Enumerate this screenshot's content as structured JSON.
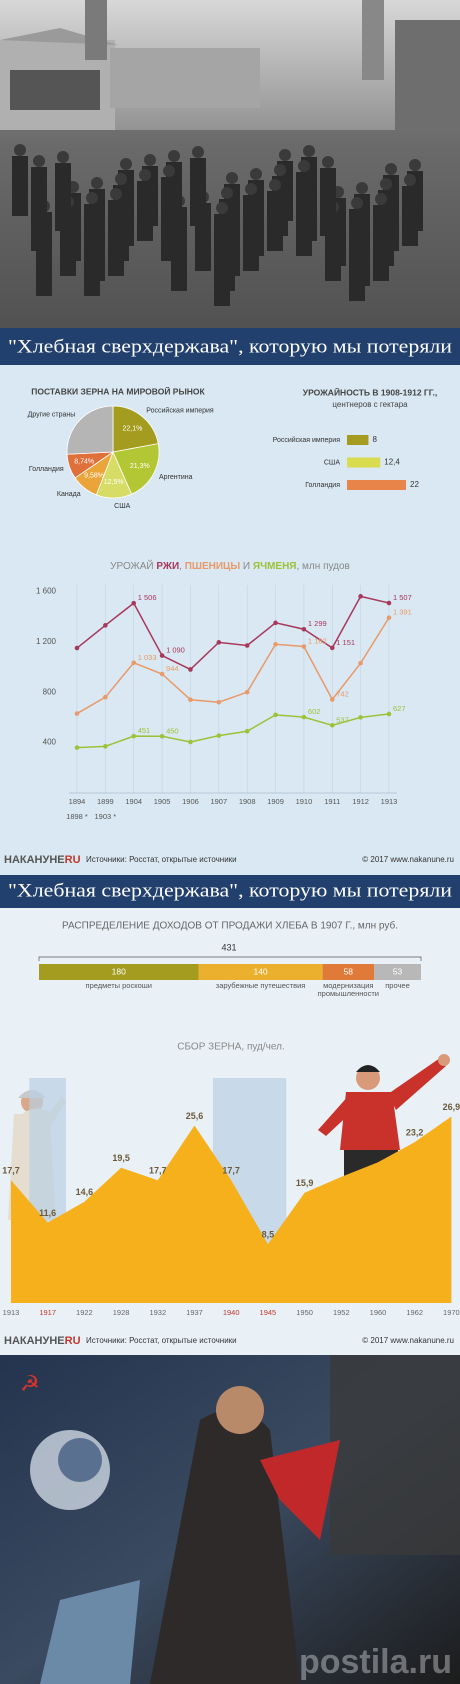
{
  "banner": {
    "title": "\"Хлебная сверхдержава\", которую мы потеряли"
  },
  "footer": {
    "logo": "НАКАНУНЕ",
    "logo_suffix": "RU",
    "source": "Источники: Росстат, открытые источники",
    "copyright": "© 2017 www.nakanune.ru"
  },
  "watermark": "postila.ru",
  "chart_data": [
    {
      "type": "pie",
      "title": "ПОСТАВКИ ЗЕРНА НА МИРОВОЙ РЫНОК",
      "categories": [
        "Российская империя",
        "Аргентина",
        "США",
        "Канада",
        "Голландия",
        "Другие страны"
      ],
      "values": [
        22.1,
        21.3,
        12.5,
        9.58,
        8.74,
        25.78
      ],
      "value_labels": [
        "22,1%",
        "21,3%",
        "12,5%",
        "9,58%",
        "8,74%",
        null
      ],
      "colors": [
        "#a39c1e",
        "#b3c633",
        "#d6dc66",
        "#eaa43a",
        "#e0703a",
        "#b5b5b5"
      ]
    },
    {
      "type": "hbar",
      "title": "УРОЖАЙНОСТЬ В 1908-1912 ГГ.,",
      "subtitle": "центнеров с гектара",
      "categories": [
        "Российская империя",
        "США",
        "Голландия"
      ],
      "values": [
        8,
        12.4,
        22
      ],
      "value_labels": [
        "8",
        "12,4",
        "22"
      ],
      "colors": [
        "#a39c1e",
        "#d8dc4e",
        "#e8844a"
      ],
      "xlim": [
        0,
        22
      ]
    },
    {
      "type": "line",
      "title": "УРОЖАЙ ",
      "title_joiners": [
        ", ",
        " И "
      ],
      "unit": ", млн пудов",
      "categories": [
        "1894",
        "1899",
        "1904",
        "1905",
        "1906",
        "1907",
        "1908",
        "1909",
        "1910",
        "1911",
        "1912",
        "1913"
      ],
      "category_notes": [
        "1898 *",
        "1903 *",
        null,
        null,
        null,
        null,
        null,
        null,
        null,
        null,
        null,
        null
      ],
      "series": [
        {
          "name": "РЖИ",
          "color": "#a8385a",
          "values": [
            1150,
            1330,
            1506,
            1090,
            980,
            1195,
            1170,
            1350,
            1299,
            1151,
            1560,
            1507
          ],
          "value_labels": [
            null,
            null,
            "1 506",
            "1 090",
            null,
            null,
            null,
            null,
            "1 299",
            "1 151",
            null,
            "1 507"
          ]
        },
        {
          "name": "ПШЕНИЦЫ",
          "color": "#e89a6a",
          "values": [
            630,
            760,
            1033,
            944,
            740,
            720,
            800,
            1180,
            1162,
            742,
            1030,
            1391
          ],
          "value_labels": [
            null,
            null,
            "1 033",
            "944",
            null,
            null,
            null,
            null,
            "1 162",
            "742",
            null,
            "1 391"
          ]
        },
        {
          "name": "ЯЧМЕНЯ",
          "color": "#9cc23a",
          "values": [
            360,
            370,
            451,
            450,
            405,
            455,
            490,
            620,
            602,
            537,
            600,
            627
          ],
          "value_labels": [
            null,
            null,
            "451",
            "450",
            null,
            null,
            null,
            null,
            "602",
            "537",
            null,
            "627"
          ]
        }
      ],
      "ylim": [
        0,
        1650
      ],
      "yticks": [
        400,
        800,
        {
          "value": 1200,
          "label": "1 200"
        },
        {
          "value": 1600,
          "label": "1 600"
        }
      ],
      "xgrid": true
    },
    {
      "type": "stacked_bar",
      "title": "РАСПРЕДЕЛЕНИЕ ДОХОДОВ ОТ ПРОДАЖИ ХЛЕБА В 1907 Г., млн руб.",
      "total": 431,
      "series": [
        {
          "name": "предметы роскоши",
          "color": "#a39c1e",
          "values": [
            180
          ]
        },
        {
          "name": "зарубежные путешествия",
          "color": "#ebb02e",
          "values": [
            140
          ]
        },
        {
          "name": "модернизация промышленности",
          "color": "#e07a38",
          "values": [
            58
          ]
        },
        {
          "name": "прочее",
          "color": "#b8b8b8",
          "values": [
            53
          ]
        }
      ]
    },
    {
      "type": "area",
      "title": "СБОР ЗЕРНА, пуд/чел.",
      "categories": [
        "1913",
        "1917",
        "1922",
        "1928",
        "1932",
        "1937",
        "1940",
        "1945",
        "1950",
        "1952",
        "1960",
        "1962",
        "1970"
      ],
      "values": [
        17.7,
        11.6,
        14.6,
        19.5,
        17.7,
        25.6,
        17.7,
        8.5,
        15.9,
        18.2,
        20.3,
        23.2,
        26.9
      ],
      "value_labels": [
        "17,7",
        "11,6",
        "14,6",
        "19,5",
        "17,7",
        "25,6",
        "17,7",
        "8,5",
        "15,9",
        null,
        null,
        "23,2",
        "26,9"
      ],
      "color": "#f5b01c",
      "ylim": [
        0,
        30
      ],
      "highlight": [
        "1917",
        "1940",
        "1945"
      ],
      "highlight_color": "#c0392b"
    }
  ]
}
